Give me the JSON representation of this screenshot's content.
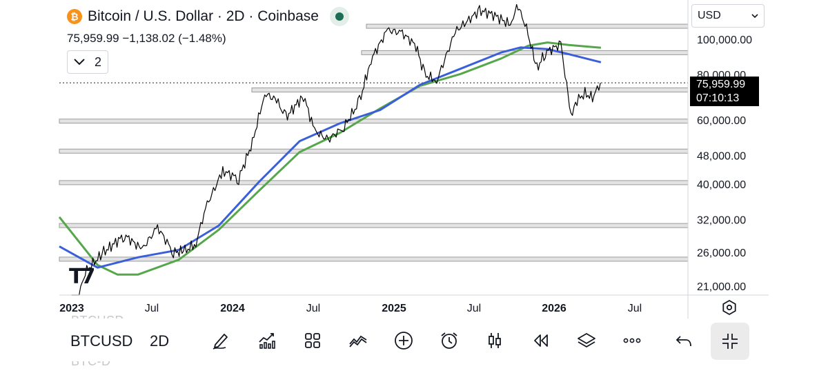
{
  "header": {
    "coin_glyph": "₿",
    "title": "Bitcoin / U.S. Dollar · 2D · Coinbase",
    "ohlc_text": "75,959.99  −1,138.02 (−1.48%)",
    "indicators_count": "2"
  },
  "currency_select": {
    "value": "USD"
  },
  "price_tag": {
    "price": "75,959.99",
    "countdown": "07:10:13"
  },
  "toolbar": {
    "symbol": "BTCUSD",
    "interval": "2D",
    "ghost_symbol_top": "BTCUSD",
    "ghost_symbol_bottom": "BTC-D",
    "icons": [
      "pencil-icon",
      "indicators-icon",
      "layout-grid-icon",
      "compare-icon",
      "plus-circle-icon",
      "alert-clock-icon",
      "candles-icon",
      "replay-icon",
      "layers-icon",
      "more-icon",
      "undo-icon",
      "exit-fullscreen-icon"
    ]
  },
  "chart_data": {
    "type": "line",
    "symbol": "BTCUSD",
    "interval": "2D",
    "y_scale": "log",
    "y_ticks": [
      21000,
      26000,
      32000,
      40000,
      48000,
      60000,
      80000,
      100000
    ],
    "y_tick_labels": [
      "21,000.00",
      "26,000.00",
      "32,000.00",
      "40,000.00",
      "48,000.00",
      "60,000.00",
      "80,000.00",
      "100,000.00"
    ],
    "x_ticks": [
      "2023",
      "Jul",
      "2024",
      "Jul",
      "2025",
      "Jul",
      "2026",
      "Jul"
    ],
    "last_price": 75959.99,
    "support_resistance_levels": [
      24900,
      30800,
      40400,
      49300,
      59600,
      72600,
      91900,
      108600
    ],
    "series": [
      {
        "color": "#000000",
        "dates": [
          "2023-01-01",
          "2023-02-01",
          "2023-03-15",
          "2023-05-01",
          "2023-06-10",
          "2023-07-15",
          "2023-08-20",
          "2023-09-15",
          "2023-10-10",
          "2023-11-01",
          "2023-12-10",
          "2024-01-15",
          "2024-02-15",
          "2024-03-14",
          "2024-04-10",
          "2024-05-01",
          "2024-06-10",
          "2024-07-05",
          "2024-08-05",
          "2024-09-10",
          "2024-10-15",
          "2024-11-10",
          "2024-12-17",
          "2025-01-20",
          "2025-02-20",
          "2025-03-11",
          "2025-04-08",
          "2025-05-20",
          "2025-07-14",
          "2025-08-14",
          "2025-09-25",
          "2025-10-06",
          "2025-10-25",
          "2025-11-21",
          "2025-12-10",
          "2026-01-14",
          "2026-02-06",
          "2026-02-20",
          "2026-03-10",
          "2026-03-27",
          "2026-04-14"
        ],
        "values": [
          16500,
          23000,
          26000,
          29000,
          26500,
          30500,
          26000,
          26200,
          27500,
          34500,
          43500,
          41500,
          52000,
          71000,
          68000,
          61000,
          70000,
          56000,
          53000,
          57500,
          67500,
          88000,
          106000,
          104000,
          96000,
          80000,
          77000,
          105000,
          120000,
          117000,
          109000,
          125000,
          111000,
          83000,
          92000,
          97000,
          62000,
          68000,
          71000,
          69000,
          75960
        ]
      },
      {
        "color": "#3a5fd9",
        "dates": [
          "2022-12-01",
          "2023-03-01",
          "2023-06-01",
          "2023-09-01",
          "2023-12-01",
          "2024-03-01",
          "2024-06-01",
          "2024-09-01",
          "2024-12-01",
          "2025-03-01",
          "2025-06-01",
          "2025-09-01",
          "2025-10-15",
          "2025-12-15",
          "2026-02-01",
          "2026-04-15"
        ],
        "values": [
          27000,
          23600,
          25200,
          26400,
          30800,
          40600,
          52500,
          58800,
          64000,
          75000,
          83000,
          92000,
          95000,
          94000,
          91000,
          86500
        ]
      },
      {
        "color": "#56a64b",
        "dates": [
          "2022-12-01",
          "2023-03-01",
          "2023-04-15",
          "2023-06-01",
          "2023-09-01",
          "2023-12-01",
          "2024-03-01",
          "2024-06-01",
          "2024-09-01",
          "2024-12-01",
          "2025-03-01",
          "2025-06-01",
          "2025-09-01",
          "2025-11-01",
          "2025-12-15",
          "2026-02-01",
          "2026-04-15"
        ],
        "values": [
          32500,
          24000,
          22600,
          22600,
          24800,
          30000,
          38400,
          49000,
          55400,
          64600,
          74500,
          80300,
          88600,
          96000,
          98000,
          96500,
          94800
        ]
      }
    ]
  }
}
